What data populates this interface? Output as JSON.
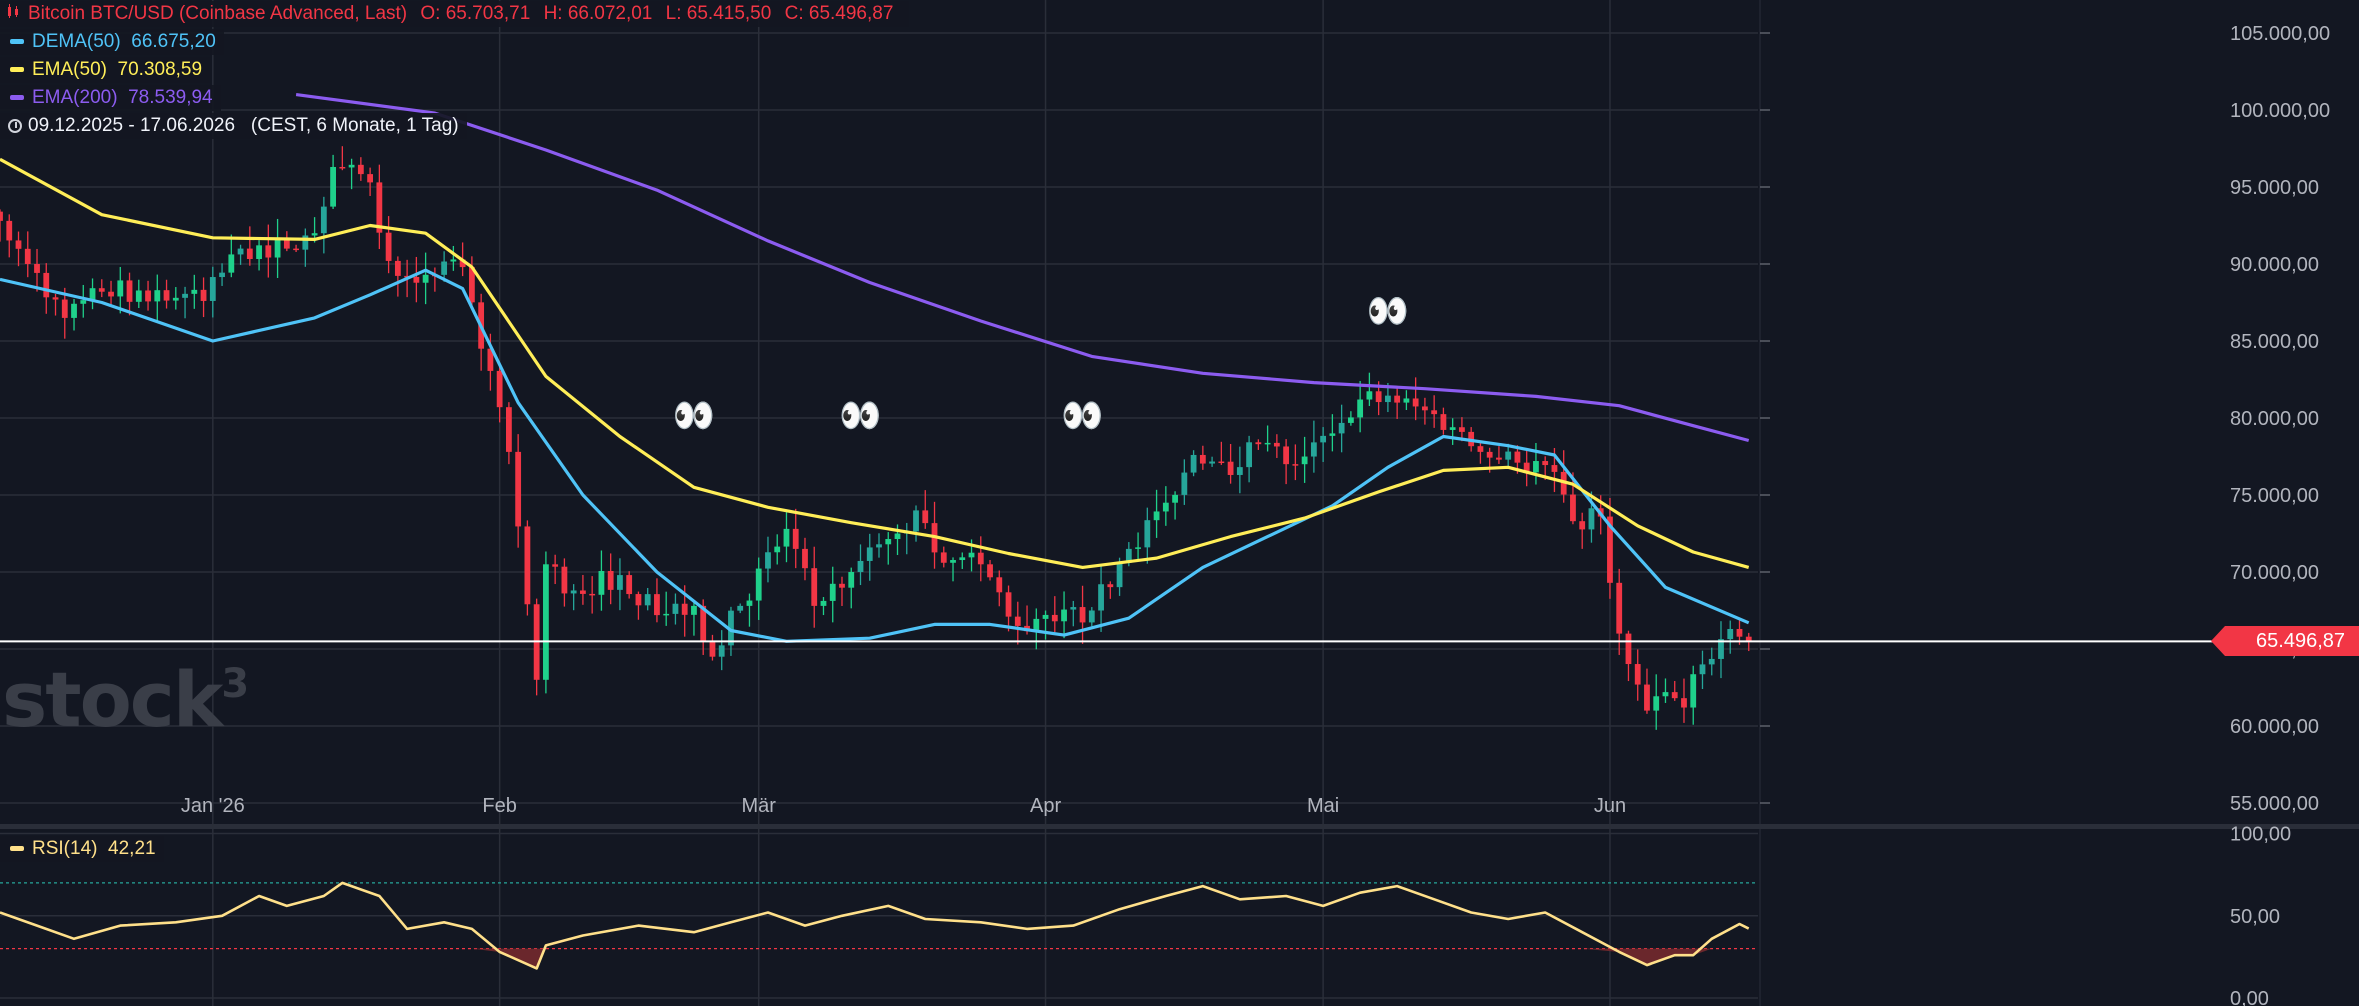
{
  "header": {
    "symbol": "Bitcoin BTC/USD (Coinbase Advanced, Last)",
    "open": "O: 65.703,71",
    "high": "H: 66.072,01",
    "low": "L: 65.415,50",
    "close": "C: 65.496,87",
    "indicators": [
      {
        "label": "DEMA(50)",
        "value": "66.675,20",
        "color": "#4fc3f7"
      },
      {
        "label": "EMA(50)",
        "value": "70.308,59",
        "color": "#ffee58"
      },
      {
        "label": "EMA(200)",
        "value": "78.539,94",
        "color": "#8c5cf0"
      }
    ],
    "range": "09.12.2025 - 17.06.2026",
    "range_info": "(CEST, 6 Monate, 1 Tag)"
  },
  "last_price_label": "65.496,87",
  "watermark": {
    "text": "stock",
    "sup": "3"
  },
  "rsi_legend": {
    "label": "RSI(14)",
    "value": "42,21",
    "color": "#ffe08a"
  },
  "colors": {
    "up": "#26a69a",
    "up_bright": "#1fd18b",
    "down": "#f23645",
    "rsi_line": "#ffe08a",
    "oversold_fill": "#7a2a2e"
  },
  "emoji": "👀",
  "chart_data": [
    {
      "type": "candlestick",
      "title": "Bitcoin BTC/USD (Coinbase Advanced, Last)",
      "x_start": "2025-12-09",
      "x_end": "2026-06-17",
      "x_ticks": [
        "Jan '26",
        "Feb",
        "Mär",
        "Apr",
        "Mai",
        "Jun"
      ],
      "y_ticks": [
        "55.000,00",
        "60.000,00",
        "65.000,00",
        "70.000,00",
        "75.000,00",
        "80.000,00",
        "85.000,00",
        "90.000,00",
        "95.000,00",
        "100.000,00",
        "105.000,00"
      ],
      "ylim": [
        54500,
        106500
      ],
      "last_price": 65497,
      "close_anchors": [
        [
          "2025-12-09",
          92800
        ],
        [
          "2025-12-12",
          90000
        ],
        [
          "2025-12-16",
          86500
        ],
        [
          "2025-12-20",
          88200
        ],
        [
          "2025-12-26",
          88300
        ],
        [
          "2025-12-31",
          87600
        ],
        [
          "2026-01-04",
          91000
        ],
        [
          "2026-01-09",
          91000
        ],
        [
          "2026-01-12",
          92000
        ],
        [
          "2026-01-14",
          96300
        ],
        [
          "2026-01-18",
          95300
        ],
        [
          "2026-01-20",
          90200
        ],
        [
          "2026-01-24",
          89300
        ],
        [
          "2026-01-28",
          89800
        ],
        [
          "2026-01-30",
          84500
        ],
        [
          "2026-02-02",
          77800
        ],
        [
          "2026-02-05",
          63000
        ],
        [
          "2026-02-06",
          70500
        ],
        [
          "2026-02-09",
          68800
        ],
        [
          "2026-02-14",
          69800
        ],
        [
          "2026-02-18",
          67200
        ],
        [
          "2026-02-22",
          67800
        ],
        [
          "2026-02-24",
          64500
        ],
        [
          "2026-02-27",
          67800
        ],
        [
          "2026-03-04",
          72800
        ],
        [
          "2026-03-07",
          67800
        ],
        [
          "2026-03-11",
          70000
        ],
        [
          "2026-03-16",
          72500
        ],
        [
          "2026-03-18",
          74000
        ],
        [
          "2026-03-21",
          70600
        ],
        [
          "2026-03-25",
          70500
        ],
        [
          "2026-03-29",
          66500
        ],
        [
          "2026-04-02",
          66800
        ],
        [
          "2026-04-06",
          67500
        ],
        [
          "2026-04-10",
          71500
        ],
        [
          "2026-04-14",
          74500
        ],
        [
          "2026-04-17",
          77600
        ],
        [
          "2026-04-21",
          76300
        ],
        [
          "2026-04-24",
          78300
        ],
        [
          "2026-04-28",
          77000
        ],
        [
          "2026-05-02",
          79000
        ],
        [
          "2026-05-05",
          81200
        ],
        [
          "2026-05-09",
          81000
        ],
        [
          "2026-05-12",
          80500
        ],
        [
          "2026-05-15",
          79400
        ],
        [
          "2026-05-18",
          77800
        ],
        [
          "2026-05-22",
          77100
        ],
        [
          "2026-05-26",
          76500
        ],
        [
          "2026-05-28",
          73300
        ],
        [
          "2026-05-31",
          73600
        ],
        [
          "2026-06-02",
          66000
        ],
        [
          "2026-06-05",
          61000
        ],
        [
          "2026-06-07",
          62200
        ],
        [
          "2026-06-09",
          61200
        ],
        [
          "2026-06-11",
          64000
        ],
        [
          "2026-06-14",
          66300
        ],
        [
          "2026-06-15",
          65800
        ],
        [
          "2026-06-16",
          65497
        ]
      ],
      "series": [
        {
          "name": "DEMA(50)",
          "color": "#4fc3f7",
          "points": [
            [
              "2025-12-09",
              89000
            ],
            [
              "2025-12-20",
              87500
            ],
            [
              "2026-01-01",
              85000
            ],
            [
              "2026-01-12",
              86500
            ],
            [
              "2026-01-18",
              88000
            ],
            [
              "2026-01-24",
              89600
            ],
            [
              "2026-01-28",
              88400
            ],
            [
              "2026-02-03",
              81000
            ],
            [
              "2026-02-10",
              75000
            ],
            [
              "2026-02-18",
              70000
            ],
            [
              "2026-02-26",
              66200
            ],
            [
              "2026-03-04",
              65500
            ],
            [
              "2026-03-13",
              65700
            ],
            [
              "2026-03-20",
              66600
            ],
            [
              "2026-03-26",
              66600
            ],
            [
              "2026-04-03",
              65900
            ],
            [
              "2026-04-10",
              67000
            ],
            [
              "2026-04-18",
              70300
            ],
            [
              "2026-04-25",
              72300
            ],
            [
              "2026-05-02",
              74300
            ],
            [
              "2026-05-08",
              76800
            ],
            [
              "2026-05-14",
              78800
            ],
            [
              "2026-05-21",
              78200
            ],
            [
              "2026-05-26",
              77600
            ],
            [
              "2026-06-01",
              73000
            ],
            [
              "2026-06-07",
              69000
            ],
            [
              "2026-06-16",
              66700
            ]
          ]
        },
        {
          "name": "EMA(50)",
          "color": "#ffee58",
          "points": [
            [
              "2025-12-09",
              96800
            ],
            [
              "2025-12-20",
              93200
            ],
            [
              "2026-01-01",
              91700
            ],
            [
              "2026-01-12",
              91600
            ],
            [
              "2026-01-18",
              92500
            ],
            [
              "2026-01-24",
              92000
            ],
            [
              "2026-01-29",
              89800
            ],
            [
              "2026-02-06",
              82700
            ],
            [
              "2026-02-14",
              78800
            ],
            [
              "2026-02-22",
              75500
            ],
            [
              "2026-03-02",
              74200
            ],
            [
              "2026-03-11",
              73200
            ],
            [
              "2026-03-20",
              72300
            ],
            [
              "2026-03-28",
              71200
            ],
            [
              "2026-04-05",
              70300
            ],
            [
              "2026-04-13",
              70900
            ],
            [
              "2026-04-21",
              72300
            ],
            [
              "2026-04-29",
              73500
            ],
            [
              "2026-05-07",
              75200
            ],
            [
              "2026-05-14",
              76600
            ],
            [
              "2026-05-21",
              76800
            ],
            [
              "2026-05-28",
              75700
            ],
            [
              "2026-06-04",
              73000
            ],
            [
              "2026-06-10",
              71300
            ],
            [
              "2026-06-16",
              70300
            ]
          ]
        },
        {
          "name": "EMA(200)",
          "color": "#8c5cf0",
          "points": [
            [
              "2026-01-10",
              101000
            ],
            [
              "2026-01-25",
              99800
            ],
            [
              "2026-02-06",
              97400
            ],
            [
              "2026-02-18",
              94800
            ],
            [
              "2026-03-02",
              91500
            ],
            [
              "2026-03-13",
              88800
            ],
            [
              "2026-03-25",
              86300
            ],
            [
              "2026-04-06",
              84000
            ],
            [
              "2026-04-18",
              82900
            ],
            [
              "2026-04-30",
              82300
            ],
            [
              "2026-05-12",
              81900
            ],
            [
              "2026-05-24",
              81400
            ],
            [
              "2026-06-02",
              80800
            ],
            [
              "2026-06-10",
              79500
            ],
            [
              "2026-06-16",
              78540
            ]
          ]
        }
      ],
      "annotations": [
        {
          "text": "👀",
          "date": "2026-02-22",
          "price": 79400
        },
        {
          "text": "👀",
          "date": "2026-03-12",
          "price": 79400
        },
        {
          "text": "👀",
          "date": "2026-04-05",
          "price": 79400
        },
        {
          "text": "👀",
          "date": "2026-05-08",
          "price": 86200
        }
      ]
    },
    {
      "type": "line",
      "title": "RSI(14)",
      "y_ticks": [
        "0,00",
        "50,00",
        "100,00"
      ],
      "ylim": [
        0,
        100
      ],
      "levels": [
        30,
        70
      ],
      "last_value": 42.21,
      "points": [
        [
          "2025-12-09",
          52
        ],
        [
          "2025-12-13",
          44
        ],
        [
          "2025-12-17",
          36
        ],
        [
          "2025-12-22",
          44
        ],
        [
          "2025-12-28",
          46
        ],
        [
          "2026-01-02",
          50
        ],
        [
          "2026-01-06",
          62
        ],
        [
          "2026-01-09",
          56
        ],
        [
          "2026-01-13",
          62
        ],
        [
          "2026-01-15",
          70
        ],
        [
          "2026-01-19",
          62
        ],
        [
          "2026-01-22",
          42
        ],
        [
          "2026-01-26",
          46
        ],
        [
          "2026-01-29",
          42
        ],
        [
          "2026-02-01",
          28
        ],
        [
          "2026-02-05",
          18
        ],
        [
          "2026-02-06",
          32
        ],
        [
          "2026-02-10",
          38
        ],
        [
          "2026-02-16",
          44
        ],
        [
          "2026-02-22",
          40
        ],
        [
          "2026-02-26",
          46
        ],
        [
          "2026-03-02",
          52
        ],
        [
          "2026-03-06",
          44
        ],
        [
          "2026-03-10",
          50
        ],
        [
          "2026-03-15",
          56
        ],
        [
          "2026-03-19",
          48
        ],
        [
          "2026-03-25",
          46
        ],
        [
          "2026-03-30",
          42
        ],
        [
          "2026-04-04",
          44
        ],
        [
          "2026-04-09",
          54
        ],
        [
          "2026-04-14",
          62
        ],
        [
          "2026-04-18",
          68
        ],
        [
          "2026-04-22",
          60
        ],
        [
          "2026-04-27",
          62
        ],
        [
          "2026-05-01",
          56
        ],
        [
          "2026-05-05",
          64
        ],
        [
          "2026-05-09",
          68
        ],
        [
          "2026-05-13",
          60
        ],
        [
          "2026-05-17",
          52
        ],
        [
          "2026-05-21",
          48
        ],
        [
          "2026-05-25",
          52
        ],
        [
          "2026-05-29",
          40
        ],
        [
          "2026-06-02",
          28
        ],
        [
          "2026-06-05",
          20
        ],
        [
          "2026-06-08",
          26
        ],
        [
          "2026-06-10",
          26
        ],
        [
          "2026-06-12",
          36
        ],
        [
          "2026-06-15",
          45
        ],
        [
          "2026-06-16",
          42.21
        ]
      ]
    }
  ]
}
